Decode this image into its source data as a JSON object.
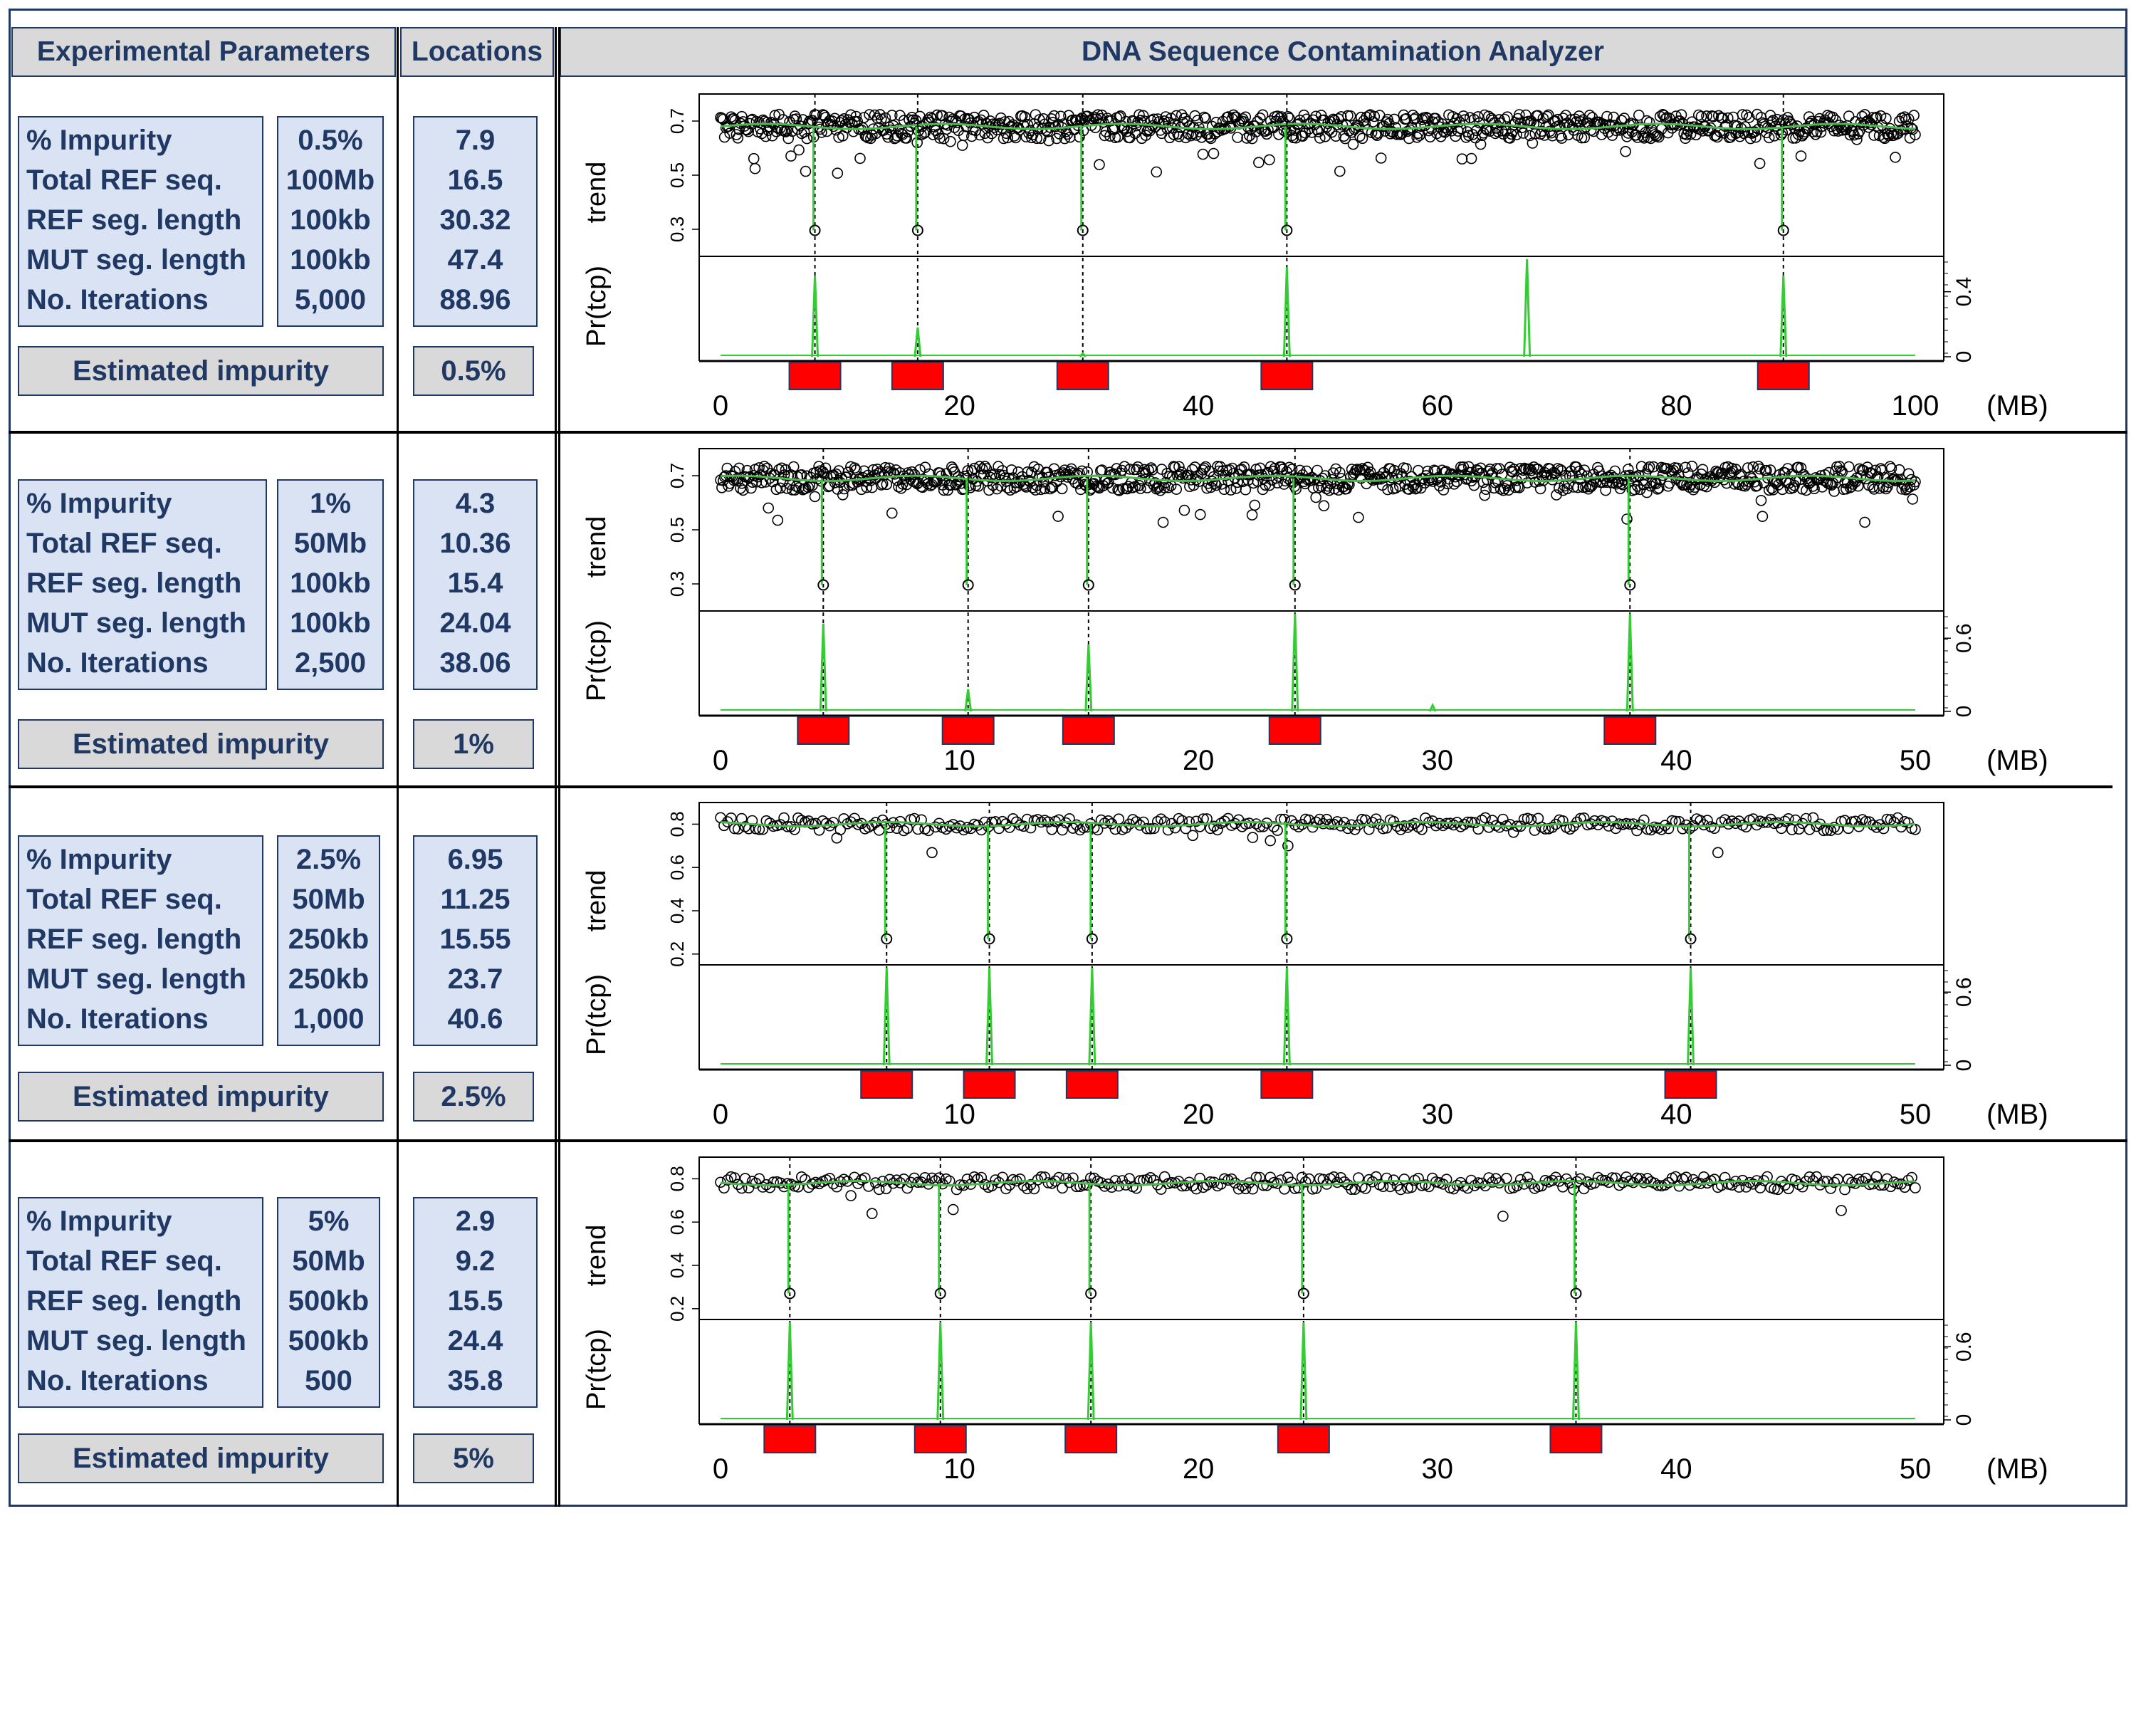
{
  "header": {
    "params_title": "Experimental Parameters",
    "locations_title": "Locations",
    "app_title": "DNA Sequence Contamination Analyzer"
  },
  "row_labels": [
    "% Impurity",
    "Total REF seq.",
    "REF seg. length",
    "MUT seg. length",
    "No. Iterations"
  ],
  "estimated_label": "Estimated impurity",
  "panels": [
    {
      "values": [
        "0.5%",
        "100Mb",
        "100kb",
        "100kb",
        "5,000"
      ],
      "locations": [
        "7.9",
        "16.5",
        "30.32",
        "47.4",
        "88.96"
      ],
      "estimated": "0.5%"
    },
    {
      "values": [
        "1%",
        "50Mb",
        "100kb",
        "100kb",
        "2,500"
      ],
      "locations": [
        "4.3",
        "10.36",
        "15.4",
        "24.04",
        "38.06"
      ],
      "estimated": "1%"
    },
    {
      "values": [
        "2.5%",
        "50Mb",
        "250kb",
        "250kb",
        "1,000"
      ],
      "locations": [
        "6.95",
        "11.25",
        "15.55",
        "23.7",
        "40.6"
      ],
      "estimated": "2.5%"
    },
    {
      "values": [
        "5%",
        "50Mb",
        "500kb",
        "500kb",
        "500"
      ],
      "locations": [
        "2.9",
        "9.2",
        "15.5",
        "24.4",
        "35.8"
      ],
      "estimated": "5%"
    }
  ],
  "colors": {
    "trend_line": "#33cc33",
    "marker": "#ff0000",
    "points": "#000000",
    "text": "#1f3864"
  },
  "chart_data": [
    {
      "type": "scatter",
      "top_ylabel": "trend",
      "bottom_ylabel": "Pr(tcp)",
      "xunit": "(MB)",
      "xlim": [
        0,
        100
      ],
      "xticks": [
        0,
        20,
        40,
        60,
        80,
        100
      ],
      "top_ylim": [
        0.2,
        0.8
      ],
      "top_yticks": [
        0.3,
        0.5,
        0.7
      ],
      "top_ytick_labels": [
        "0.3",
        "0.5",
        "0.7"
      ],
      "baseline": 0.68,
      "bottom_ylim": [
        0,
        0.6
      ],
      "bottom_yticks": [
        0,
        0.4
      ],
      "bottom_ytick_labels": [
        "0",
        "0.4"
      ],
      "markers": [
        7.9,
        16.5,
        30.32,
        47.4,
        88.96
      ],
      "peaks": [
        {
          "x": 7.9,
          "p": 0.5
        },
        {
          "x": 16.5,
          "p": 0.18
        },
        {
          "x": 30.32,
          "p": 0.02
        },
        {
          "x": 47.4,
          "p": 0.55
        },
        {
          "x": 67.5,
          "p": 0.6
        },
        {
          "x": 88.96,
          "p": 0.5
        }
      ]
    },
    {
      "type": "scatter",
      "top_ylabel": "trend",
      "bottom_ylabel": "Pr(tcp)",
      "xunit": "(MB)",
      "xlim": [
        0,
        50
      ],
      "xticks": [
        0,
        10,
        20,
        30,
        40,
        50
      ],
      "top_ylim": [
        0.2,
        0.8
      ],
      "top_yticks": [
        0.3,
        0.5,
        0.7
      ],
      "top_ytick_labels": [
        "0.3",
        "0.5",
        "0.7"
      ],
      "baseline": 0.69,
      "bottom_ylim": [
        0,
        0.8
      ],
      "bottom_yticks": [
        0,
        0.6
      ],
      "bottom_ytick_labels": [
        "0",
        "0.6"
      ],
      "markers": [
        4.3,
        10.36,
        15.4,
        24.04,
        38.06
      ],
      "peaks": [
        {
          "x": 4.3,
          "p": 0.72
        },
        {
          "x": 10.36,
          "p": 0.18
        },
        {
          "x": 15.4,
          "p": 0.55
        },
        {
          "x": 24.04,
          "p": 0.8
        },
        {
          "x": 29.8,
          "p": 0.05
        },
        {
          "x": 38.06,
          "p": 0.8
        }
      ]
    },
    {
      "type": "scatter",
      "top_ylabel": "trend",
      "bottom_ylabel": "Pr(tcp)",
      "xunit": "(MB)",
      "xlim": [
        0,
        50
      ],
      "xticks": [
        0,
        10,
        20,
        30,
        40,
        50
      ],
      "top_ylim": [
        0.15,
        0.9
      ],
      "top_yticks": [
        0.2,
        0.4,
        0.6,
        0.8
      ],
      "top_ytick_labels": [
        "0.2",
        "0.4",
        "0.6",
        "0.8"
      ],
      "baseline": 0.8,
      "bottom_ylim": [
        0,
        0.8
      ],
      "bottom_yticks": [
        0,
        0.6
      ],
      "bottom_ytick_labels": [
        "0",
        "0.6"
      ],
      "markers": [
        6.95,
        11.25,
        15.55,
        23.7,
        40.6
      ],
      "peaks": [
        {
          "x": 6.95,
          "p": 0.8
        },
        {
          "x": 11.25,
          "p": 0.8
        },
        {
          "x": 15.55,
          "p": 0.8
        },
        {
          "x": 23.7,
          "p": 0.8
        },
        {
          "x": 40.6,
          "p": 0.8
        }
      ]
    },
    {
      "type": "scatter",
      "top_ylabel": "trend",
      "bottom_ylabel": "Pr(tcp)",
      "xunit": "(MB)",
      "xlim": [
        0,
        50
      ],
      "xticks": [
        0,
        10,
        20,
        30,
        40,
        50
      ],
      "top_ylim": [
        0.15,
        0.9
      ],
      "top_yticks": [
        0.2,
        0.4,
        0.6,
        0.8
      ],
      "top_ytick_labels": [
        "0.2",
        "0.4",
        "0.6",
        "0.8"
      ],
      "baseline": 0.78,
      "bottom_ylim": [
        0,
        0.8
      ],
      "bottom_yticks": [
        0,
        0.6
      ],
      "bottom_ytick_labels": [
        "0",
        "0.6"
      ],
      "markers": [
        2.9,
        9.2,
        15.5,
        24.4,
        35.8
      ],
      "peaks": [
        {
          "x": 2.9,
          "p": 0.8
        },
        {
          "x": 9.2,
          "p": 0.8
        },
        {
          "x": 15.5,
          "p": 0.8
        },
        {
          "x": 24.4,
          "p": 0.8
        },
        {
          "x": 35.8,
          "p": 0.8
        }
      ]
    }
  ]
}
